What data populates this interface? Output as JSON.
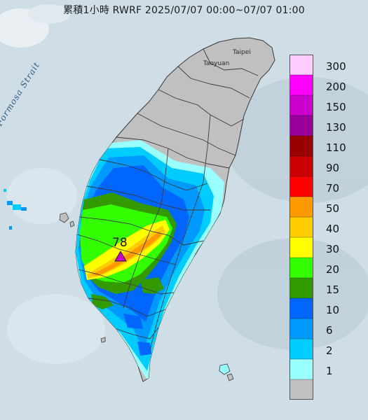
{
  "title": "累積1小時 RWRF 2025/07/07 00:00~07/07 01:00",
  "strait_label": "Formosa Strait",
  "city_labels": {
    "taipei": "Taipei",
    "taoyuan": "Taoyuan"
  },
  "max_value_label": "78",
  "legend": [
    {
      "label": "300",
      "color": "#ffccff"
    },
    {
      "label": "200",
      "color": "#ff00ff"
    },
    {
      "label": "150",
      "color": "#cc00cc"
    },
    {
      "label": "130",
      "color": "#990099"
    },
    {
      "label": "110",
      "color": "#990000"
    },
    {
      "label": "90",
      "color": "#cc0000"
    },
    {
      "label": "70",
      "color": "#ff0000"
    },
    {
      "label": "50",
      "color": "#ff9900"
    },
    {
      "label": "40",
      "color": "#ffcc00"
    },
    {
      "label": "30",
      "color": "#ffff00"
    },
    {
      "label": "20",
      "color": "#33ff00"
    },
    {
      "label": "15",
      "color": "#339900"
    },
    {
      "label": "10",
      "color": "#0066ff"
    },
    {
      "label": "6",
      "color": "#0099ff"
    },
    {
      "label": "2",
      "color": "#00ccff"
    },
    {
      "label": "1",
      "color": "#99ffff"
    },
    {
      "label": "",
      "color": "#c0c0c0"
    }
  ],
  "colors": {
    "sea": "#cfdde6",
    "land_no_rain": "#c0c0c0",
    "marker": "#cc00cc"
  }
}
